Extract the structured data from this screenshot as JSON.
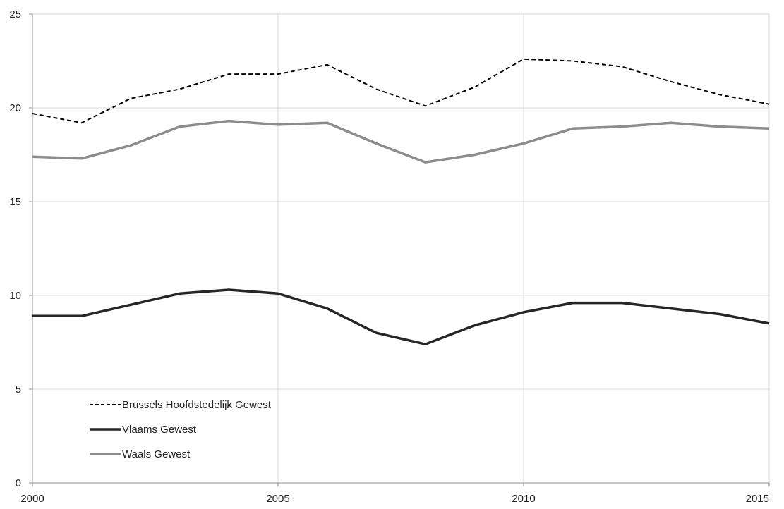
{
  "chart_data": {
    "type": "line",
    "title": "",
    "xlabel": "",
    "ylabel": "",
    "xlim": [
      2000,
      2015
    ],
    "ylim": [
      0,
      25
    ],
    "x_ticks": [
      2000,
      2005,
      2010,
      2015
    ],
    "y_ticks": [
      0,
      5,
      10,
      15,
      20,
      25
    ],
    "grid": true,
    "legend_position": "bottom-left",
    "x": [
      2000,
      2001,
      2002,
      2003,
      2004,
      2005,
      2006,
      2007,
      2008,
      2009,
      2010,
      2011,
      2012,
      2013,
      2014,
      2015
    ],
    "series": [
      {
        "name": "Brussels Hoofdstedelijk Gewest",
        "style": "dashed",
        "color": "#000000",
        "values": [
          19.7,
          19.2,
          20.5,
          21.0,
          21.8,
          21.8,
          22.3,
          21.0,
          20.1,
          21.1,
          22.6,
          22.5,
          22.2,
          21.4,
          20.7,
          20.2
        ]
      },
      {
        "name": "Vlaams Gewest",
        "style": "solid",
        "color": "#262626",
        "values": [
          8.9,
          8.9,
          9.5,
          10.1,
          10.3,
          10.1,
          9.3,
          8.0,
          7.4,
          8.4,
          9.1,
          9.6,
          9.6,
          9.3,
          9.0,
          8.5
        ]
      },
      {
        "name": "Waals Gewest",
        "style": "solid",
        "color": "#8c8c8c",
        "values": [
          17.4,
          17.3,
          18.0,
          19.0,
          19.3,
          19.1,
          19.2,
          18.1,
          17.1,
          17.5,
          18.1,
          18.9,
          19.0,
          19.2,
          19.0,
          18.9
        ]
      }
    ]
  }
}
